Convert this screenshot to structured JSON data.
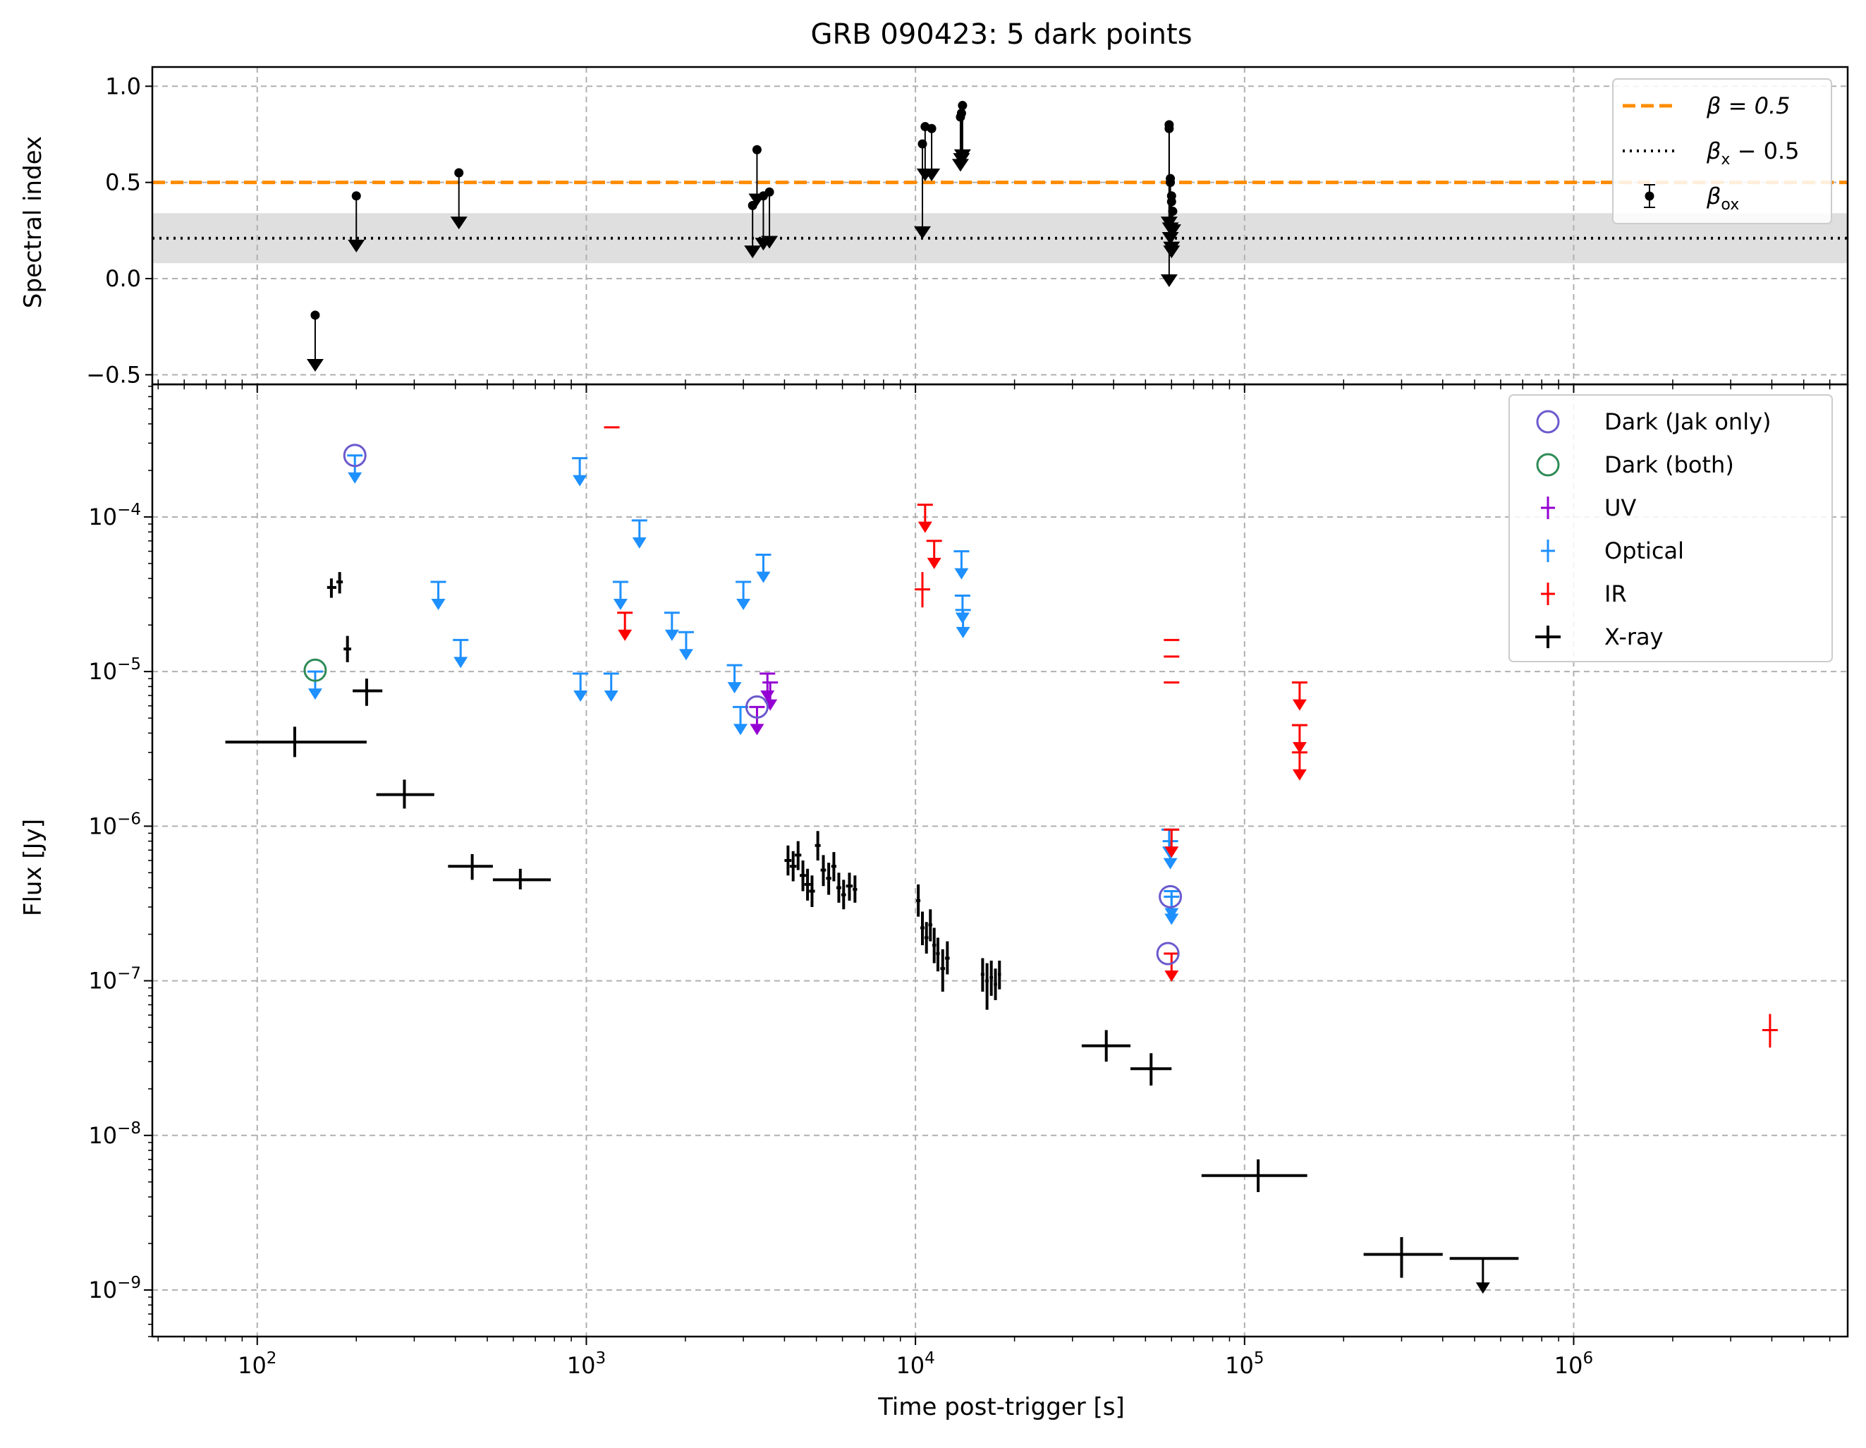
{
  "chart_data": {
    "type": "scatter",
    "title": "GRB 090423: 5 dark points",
    "panels": {
      "top": {
        "ylabel": "Spectral index",
        "ylim": [
          -0.55,
          1.1
        ],
        "yticks": [
          {
            "v": 1.0,
            "label": "1.0"
          },
          {
            "v": 0.5,
            "label": "0.5"
          },
          {
            "v": 0.0,
            "label": "0.0"
          },
          {
            "v": -0.5,
            "label": "−0.5"
          }
        ],
        "beta_line": 0.5,
        "beta_x_line": 0.21,
        "beta_x_band": [
          0.08,
          0.34
        ],
        "legend": {
          "placement": "top-right",
          "entries": [
            {
              "series": "beta",
              "text": "β = 0.5"
            },
            {
              "series": "beta_x",
              "text": "β",
              "sub": "x",
              "tail": " − 0.5"
            },
            {
              "series": "beta_ox",
              "text": "β",
              "sub": "ox"
            }
          ]
        },
        "beta_ox": [
          {
            "t": 150,
            "v": -0.19,
            "lim": -0.44
          },
          {
            "t": 200,
            "v": 0.43,
            "lim": 0.18
          },
          {
            "t": 410,
            "v": 0.55,
            "lim": 0.3
          },
          {
            "t": 3200,
            "v": 0.38,
            "lim": 0.15
          },
          {
            "t": 3300,
            "v": 0.67,
            "lim": 0.42
          },
          {
            "t": 3450,
            "v": 0.43,
            "lim": 0.19
          },
          {
            "t": 3600,
            "v": 0.45,
            "lim": 0.2
          },
          {
            "t": 10500,
            "v": 0.7,
            "lim": 0.25
          },
          {
            "t": 10700,
            "v": 0.79,
            "lim": 0.55
          },
          {
            "t": 11200,
            "v": 0.78,
            "lim": 0.55
          },
          {
            "t": 13700,
            "v": 0.84,
            "lim": 0.6
          },
          {
            "t": 13800,
            "v": 0.86,
            "lim": 0.63
          },
          {
            "t": 13900,
            "v": 0.9,
            "lim": 0.65
          },
          {
            "t": 59000,
            "v": 0.8,
            "lim": 0.3
          },
          {
            "t": 59000,
            "v": 0.78,
            "lim": 0.0
          },
          {
            "t": 59500,
            "v": 0.52,
            "lim": 0.27
          },
          {
            "t": 59500,
            "v": 0.5,
            "lim": 0.22
          },
          {
            "t": 60000,
            "v": 0.43,
            "lim": 0.17
          },
          {
            "t": 60000,
            "v": 0.4,
            "lim": 0.15
          },
          {
            "t": 60500,
            "v": 0.35,
            "lim": 0.26
          }
        ]
      },
      "bottom": {
        "xlabel": "Time post-trigger [s]",
        "ylabel": "Flux [Jy]",
        "x_scale": "log",
        "y_scale": "log",
        "xlim": [
          48,
          6800000
        ],
        "ylim": [
          5e-10,
          0.00072
        ],
        "xticks": [
          {
            "v": 100,
            "base": "10",
            "exp": "2"
          },
          {
            "v": 1000,
            "base": "10",
            "exp": "3"
          },
          {
            "v": 10000,
            "base": "10",
            "exp": "4"
          },
          {
            "v": 100000,
            "base": "10",
            "exp": "5"
          },
          {
            "v": 1000000,
            "base": "10",
            "exp": "6"
          }
        ],
        "yticks": [
          {
            "v": 0.0001,
            "base": "10",
            "exp": "−4"
          },
          {
            "v": 1e-05,
            "base": "10",
            "exp": "−5"
          },
          {
            "v": 1e-06,
            "base": "10",
            "exp": "−6"
          },
          {
            "v": 1e-07,
            "base": "10",
            "exp": "−7"
          },
          {
            "v": 1e-08,
            "base": "10",
            "exp": "−8"
          },
          {
            "v": 1e-09,
            "base": "10",
            "exp": "−9"
          }
        ],
        "legend": {
          "placement": "top-right",
          "entries": [
            {
              "series": "dark_jak",
              "text": "Dark (Jak only)"
            },
            {
              "series": "dark_both",
              "text": "Dark (both)"
            },
            {
              "series": "uv",
              "text": "UV"
            },
            {
              "series": "optical",
              "text": "Optical"
            },
            {
              "series": "ir",
              "text": "IR"
            },
            {
              "series": "xray",
              "text": "X-ray"
            }
          ]
        },
        "xray": [
          {
            "t": 130,
            "t0": 80,
            "t1": 215,
            "f": 3.5e-06,
            "lo": 2.8e-06,
            "hi": 4.4e-06
          },
          {
            "t": 168,
            "t0": 163,
            "t1": 174,
            "f": 3.5e-05,
            "lo": 3e-05,
            "hi": 4e-05
          },
          {
            "t": 178,
            "t0": 174,
            "t1": 182,
            "f": 3.8e-05,
            "lo": 3.2e-05,
            "hi": 4.4e-05
          },
          {
            "t": 188,
            "t0": 183,
            "t1": 193,
            "f": 1.4e-05,
            "lo": 1.15e-05,
            "hi": 1.7e-05
          },
          {
            "t": 215,
            "t0": 195,
            "t1": 240,
            "f": 7.5e-06,
            "lo": 6e-06,
            "hi": 9e-06
          },
          {
            "t": 280,
            "t0": 230,
            "t1": 345,
            "f": 1.6e-06,
            "lo": 1.3e-06,
            "hi": 2e-06
          },
          {
            "t": 450,
            "t0": 380,
            "t1": 520,
            "f": 5.5e-07,
            "lo": 4.5e-07,
            "hi": 6.6e-07
          },
          {
            "t": 630,
            "t0": 520,
            "t1": 780,
            "f": 4.5e-07,
            "lo": 3.9e-07,
            "hi": 5.3e-07
          },
          {
            "t": 4100,
            "t0": 4000,
            "t1": 4200,
            "f": 6e-07,
            "lo": 4.8e-07,
            "hi": 7.5e-07
          },
          {
            "t": 4250,
            "t0": 4150,
            "t1": 4350,
            "f": 5.5e-07,
            "lo": 4.4e-07,
            "hi": 6.9e-07
          },
          {
            "t": 4400,
            "t0": 4300,
            "t1": 4500,
            "f": 6.5e-07,
            "lo": 5.2e-07,
            "hi": 8e-07
          },
          {
            "t": 4550,
            "t0": 4450,
            "t1": 4650,
            "f": 4.8e-07,
            "lo": 3.8e-07,
            "hi": 6e-07
          },
          {
            "t": 4700,
            "t0": 4600,
            "t1": 4800,
            "f": 4.2e-07,
            "lo": 3.3e-07,
            "hi": 5.3e-07
          },
          {
            "t": 4850,
            "t0": 4750,
            "t1": 4950,
            "f": 3.8e-07,
            "lo": 3e-07,
            "hi": 4.8e-07
          },
          {
            "t": 5050,
            "t0": 4950,
            "t1": 5150,
            "f": 7.5e-07,
            "lo": 6e-07,
            "hi": 9.3e-07
          },
          {
            "t": 5250,
            "t0": 5150,
            "t1": 5350,
            "f": 5.2e-07,
            "lo": 4.1e-07,
            "hi": 6.5e-07
          },
          {
            "t": 5450,
            "t0": 5350,
            "t1": 5550,
            "f": 4.6e-07,
            "lo": 3.6e-07,
            "hi": 5.8e-07
          },
          {
            "t": 5650,
            "t0": 5550,
            "t1": 5750,
            "f": 5.5e-07,
            "lo": 4.4e-07,
            "hi": 6.8e-07
          },
          {
            "t": 5850,
            "t0": 5750,
            "t1": 5950,
            "f": 4e-07,
            "lo": 3.2e-07,
            "hi": 5e-07
          },
          {
            "t": 6050,
            "t0": 5950,
            "t1": 6150,
            "f": 3.6e-07,
            "lo": 2.9e-07,
            "hi": 4.5e-07
          },
          {
            "t": 6300,
            "t0": 6150,
            "t1": 6450,
            "f": 4.1e-07,
            "lo": 3.3e-07,
            "hi": 5e-07
          },
          {
            "t": 6550,
            "t0": 6450,
            "t1": 6650,
            "f": 3.9e-07,
            "lo": 3.2e-07,
            "hi": 4.8e-07
          },
          {
            "t": 10200,
            "t0": 10050,
            "t1": 10350,
            "f": 3.3e-07,
            "lo": 2.6e-07,
            "hi": 4.2e-07
          },
          {
            "t": 10500,
            "t0": 10350,
            "t1": 10650,
            "f": 2.2e-07,
            "lo": 1.7e-07,
            "hi": 2.8e-07
          },
          {
            "t": 10800,
            "t0": 10650,
            "t1": 10950,
            "f": 1.9e-07,
            "lo": 1.5e-07,
            "hi": 2.4e-07
          },
          {
            "t": 11100,
            "t0": 10950,
            "t1": 11250,
            "f": 2.3e-07,
            "lo": 1.8e-07,
            "hi": 2.9e-07
          },
          {
            "t": 11400,
            "t0": 11250,
            "t1": 11550,
            "f": 1.7e-07,
            "lo": 1.3e-07,
            "hi": 2.2e-07
          },
          {
            "t": 11700,
            "t0": 11550,
            "t1": 11850,
            "f": 1.5e-07,
            "lo": 1.15e-07,
            "hi": 1.9e-07
          },
          {
            "t": 12100,
            "t0": 11900,
            "t1": 12300,
            "f": 1.2e-07,
            "lo": 8.5e-08,
            "hi": 1.6e-07
          },
          {
            "t": 12500,
            "t0": 12300,
            "t1": 12700,
            "f": 1.4e-07,
            "lo": 1.1e-07,
            "hi": 1.8e-07
          },
          {
            "t": 16000,
            "t0": 15800,
            "t1": 16200,
            "f": 1.1e-07,
            "lo": 8.5e-08,
            "hi": 1.4e-07
          },
          {
            "t": 16500,
            "t0": 16300,
            "t1": 16700,
            "f": 1e-07,
            "lo": 6.5e-08,
            "hi": 1.3e-07
          },
          {
            "t": 17000,
            "t0": 16800,
            "t1": 17200,
            "f": 1.05e-07,
            "lo": 8e-08,
            "hi": 1.35e-07
          },
          {
            "t": 17500,
            "t0": 17300,
            "t1": 17700,
            "f": 9.5e-08,
            "lo": 7.5e-08,
            "hi": 1.2e-07
          },
          {
            "t": 18000,
            "t0": 17800,
            "t1": 18200,
            "f": 1.1e-07,
            "lo": 8.8e-08,
            "hi": 1.35e-07
          },
          {
            "t": 38000,
            "t0": 32000,
            "t1": 45000,
            "f": 3.8e-08,
            "lo": 3e-08,
            "hi": 4.8e-08
          },
          {
            "t": 52000,
            "t0": 45000,
            "t1": 60000,
            "f": 2.7e-08,
            "lo": 2.1e-08,
            "hi": 3.4e-08
          },
          {
            "t": 110000,
            "t0": 74000,
            "t1": 155000,
            "f": 5.5e-09,
            "lo": 4.3e-09,
            "hi": 7e-09
          },
          {
            "t": 300000,
            "t0": 230000,
            "t1": 400000,
            "f": 1.7e-09,
            "lo": 1.2e-09,
            "hi": 2.2e-09
          },
          {
            "t": 530000,
            "t0": 420000,
            "t1": 680000,
            "f": 1.6e-09,
            "upper": true
          }
        ],
        "optical": [
          {
            "t": 198,
            "f": 0.00025
          },
          {
            "t": 150,
            "f": 1e-05
          },
          {
            "t": 355,
            "f": 3.8e-05
          },
          {
            "t": 415,
            "f": 1.6e-05
          },
          {
            "t": 955,
            "f": 0.00024
          },
          {
            "t": 960,
            "f": 9.7e-06
          },
          {
            "t": 1190,
            "f": 9.7e-06
          },
          {
            "t": 1270,
            "f": 3.8e-05
          },
          {
            "t": 1450,
            "f": 9.5e-05
          },
          {
            "t": 1820,
            "f": 2.4e-05
          },
          {
            "t": 2010,
            "f": 1.8e-05
          },
          {
            "t": 2820,
            "f": 1.1e-05
          },
          {
            "t": 3000,
            "f": 3.8e-05
          },
          {
            "t": 2940,
            "f": 5.9e-06
          },
          {
            "t": 3450,
            "f": 5.7e-05
          },
          {
            "t": 13800,
            "f": 6e-05
          },
          {
            "t": 13900,
            "f": 3.1e-05
          },
          {
            "t": 13950,
            "f": 2.5e-05
          },
          {
            "t": 59000,
            "f": 9.5e-07
          },
          {
            "t": 59500,
            "f": 8e-07
          },
          {
            "t": 60000,
            "f": 3.8e-07
          },
          {
            "t": 60000,
            "f": 3.5e-07
          }
        ],
        "uv": [
          {
            "t": 3300,
            "f": 5.9e-06
          },
          {
            "t": 3550,
            "f": 9.7e-06
          },
          {
            "t": 3620,
            "f": 8.5e-06
          }
        ],
        "ir": [
          {
            "t": 1195,
            "f": 0.00038,
            "tick": true
          },
          {
            "t": 1310,
            "f": 2.4e-05,
            "upper": true
          },
          {
            "t": 10700,
            "f": 0.00012,
            "upper": true
          },
          {
            "t": 11400,
            "f": 7e-05,
            "upper": true
          },
          {
            "t": 10500,
            "f": 3.4e-05,
            "lo": 2.6e-05,
            "hi": 4.4e-05
          },
          {
            "t": 60000,
            "f": 1.6e-05,
            "tick": true
          },
          {
            "t": 60000,
            "f": 1.25e-05,
            "tick": true
          },
          {
            "t": 60000,
            "f": 8.5e-06,
            "tick": true
          },
          {
            "t": 60000,
            "f": 9.5e-07,
            "upper": true
          },
          {
            "t": 60000,
            "f": 1.5e-07,
            "upper": true
          },
          {
            "t": 147000,
            "f": 8.5e-06,
            "upper": true
          },
          {
            "t": 147000,
            "f": 4.5e-06,
            "upper": true
          },
          {
            "t": 147000,
            "f": 3e-06,
            "upper": true
          },
          {
            "t": 3950000,
            "f": 4.8e-08,
            "lo": 3.7e-08,
            "hi": 6.1e-08
          }
        ],
        "dark_jak": [
          {
            "t": 198,
            "f": 0.00025
          },
          {
            "t": 3300,
            "f": 5.9e-06
          },
          {
            "t": 59500,
            "f": 3.5e-07
          },
          {
            "t": 58500,
            "f": 1.5e-07
          }
        ],
        "dark_both": [
          {
            "t": 150,
            "f": 1.02e-05
          }
        ]
      }
    },
    "colors": {
      "beta": "#ff8c00",
      "beta_x": "#000000",
      "band": "#dcdcdc",
      "beta_ox": "#000000",
      "dark_jak": "#6a5acd",
      "dark_both": "#2e8b57",
      "uv": "#9400d3",
      "optical": "#1e90ff",
      "ir": "#ff0000",
      "xray": "#000000",
      "grid": "#b0b0b0"
    }
  }
}
